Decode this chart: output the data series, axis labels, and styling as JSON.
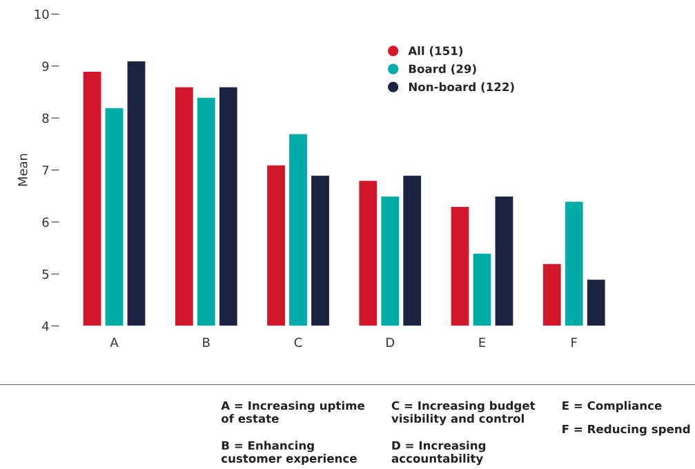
{
  "chart_data": {
    "type": "bar",
    "ylabel": "Mean",
    "categories": [
      "A",
      "B",
      "C",
      "D",
      "E",
      "F"
    ],
    "series": [
      {
        "name": "All (151)",
        "color": "#d0182a",
        "values": [
          8.9,
          8.6,
          7.1,
          6.8,
          6.3,
          5.2
        ]
      },
      {
        "name": "Board (29)",
        "color": "#00aca8",
        "values": [
          8.2,
          8.4,
          7.7,
          6.5,
          5.4,
          6.4
        ]
      },
      {
        "name": "Non-board (122)",
        "color": "#1b2340",
        "values": [
          9.1,
          8.6,
          6.9,
          6.9,
          6.5,
          4.9
        ]
      }
    ],
    "ylim": [
      4,
      10
    ],
    "yticks": [
      4,
      5,
      6,
      7,
      8,
      9,
      10
    ],
    "grid": false,
    "legend": "top right",
    "annotations": [
      "A = Increasing uptime\nof estate",
      "B = Enhancing\ncustomer experience",
      "C = Increasing budget\nvisibility and control",
      "D = Increasing\naccountability",
      "E = Compliance",
      "F = Reducing spend"
    ]
  }
}
